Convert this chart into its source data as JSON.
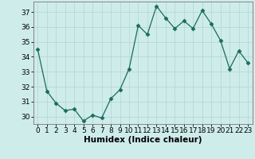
{
  "x": [
    0,
    1,
    2,
    3,
    4,
    5,
    6,
    7,
    8,
    9,
    10,
    11,
    12,
    13,
    14,
    15,
    16,
    17,
    18,
    19,
    20,
    21,
    22,
    23
  ],
  "y": [
    34.5,
    31.7,
    30.9,
    30.4,
    30.5,
    29.7,
    30.1,
    29.9,
    31.2,
    31.8,
    33.2,
    36.1,
    35.5,
    37.4,
    36.6,
    35.9,
    36.4,
    35.9,
    37.1,
    36.2,
    35.1,
    33.2,
    34.4,
    33.6
  ],
  "line_color": "#1a6b5e",
  "marker": "D",
  "markersize": 2.5,
  "bg_color": "#ceecea",
  "grid_color": "#b8d8d5",
  "xlabel": "Humidex (Indice chaleur)",
  "ylim": [
    29.5,
    37.7
  ],
  "yticks": [
    30,
    31,
    32,
    33,
    34,
    35,
    36,
    37
  ],
  "xticks": [
    0,
    1,
    2,
    3,
    4,
    5,
    6,
    7,
    8,
    9,
    10,
    11,
    12,
    13,
    14,
    15,
    16,
    17,
    18,
    19,
    20,
    21,
    22,
    23
  ],
  "tick_fontsize": 6.5,
  "xlabel_fontsize": 7.5
}
